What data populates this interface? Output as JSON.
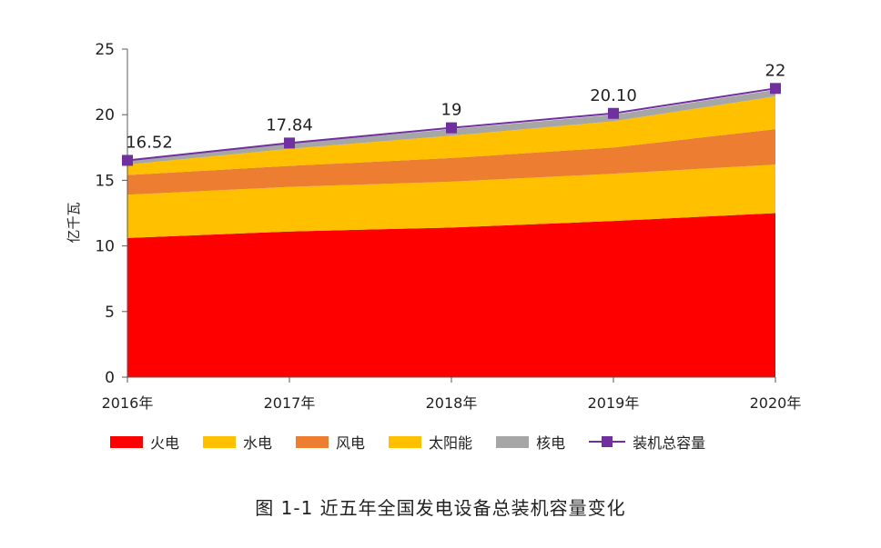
{
  "chart_data": {
    "type": "area",
    "stacked": true,
    "categories": [
      "2016年",
      "2017年",
      "2018年",
      "2019年",
      "2020年"
    ],
    "ylabel": "亿千瓦",
    "ylim": [
      0,
      25
    ],
    "yticks": [
      "0",
      "5",
      "10",
      "15",
      "20",
      "25"
    ],
    "grid": false,
    "legend_position": "bottom",
    "series": [
      {
        "name": "火电",
        "type": "area",
        "color": "#FF0000",
        "values": [
          10.6,
          11.1,
          11.4,
          11.9,
          12.5
        ]
      },
      {
        "name": "水电",
        "type": "area",
        "color": "#FFC000",
        "values": [
          3.3,
          3.4,
          3.5,
          3.6,
          3.7
        ]
      },
      {
        "name": "风电",
        "type": "area",
        "color": "#ED7D31",
        "values": [
          1.5,
          1.6,
          1.8,
          2.0,
          2.7
        ]
      },
      {
        "name": "太阳能",
        "type": "area",
        "color": "#FFC000",
        "values": [
          0.8,
          1.3,
          1.7,
          2.0,
          2.5
        ]
      },
      {
        "name": "核电",
        "type": "area",
        "color": "#A6A6A6",
        "values": [
          0.3,
          0.4,
          0.5,
          0.5,
          0.5
        ]
      },
      {
        "name": "装机总容量",
        "type": "line",
        "color": "#7030A0",
        "values": [
          16.52,
          17.84,
          19,
          20.1,
          22
        ]
      }
    ],
    "data_labels": [
      "16.52",
      "17.84",
      "19",
      "20.10",
      "22"
    ]
  },
  "caption": "图 1-1    近五年全国发电设备总装机容量变化"
}
